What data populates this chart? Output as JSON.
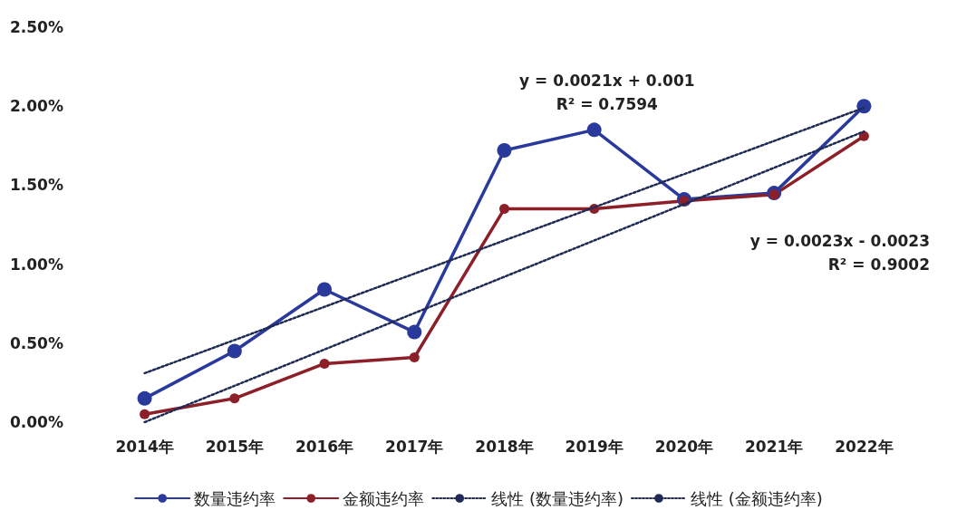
{
  "chart_data": {
    "type": "line",
    "categories": [
      "2014年",
      "2015年",
      "2016年",
      "2017年",
      "2018年",
      "2019年",
      "2020年",
      "2021年",
      "2022年"
    ],
    "series": [
      {
        "name": "数量违约率",
        "color": "#2a3a9c",
        "marker": "circle",
        "line_style": "solid",
        "values": [
          0.15,
          0.45,
          0.84,
          0.57,
          1.72,
          1.85,
          1.41,
          1.45,
          2.0
        ]
      },
      {
        "name": "金额违约率",
        "color": "#8c1f28",
        "marker": "circle",
        "line_style": "solid",
        "values": [
          0.05,
          0.15,
          0.37,
          0.41,
          1.35,
          1.35,
          1.4,
          1.44,
          1.81
        ]
      },
      {
        "name": "线性 (数量违约率)",
        "color": "#1f2a55",
        "marker": "none",
        "line_style": "dotted",
        "values": [
          0.31,
          0.52,
          0.73,
          0.94,
          1.15,
          1.36,
          1.57,
          1.78,
          1.99
        ]
      },
      {
        "name": "线性 (金额违约率)",
        "color": "#1f2a55",
        "marker": "none",
        "line_style": "dotted",
        "values": [
          0.0,
          0.23,
          0.46,
          0.69,
          0.92,
          1.15,
          1.38,
          1.61,
          1.84
        ]
      }
    ],
    "ylim": [
      0,
      2.5
    ],
    "yticks": [
      {
        "value": 0,
        "label": "0.00%"
      },
      {
        "value": 0.5,
        "label": "0.50%"
      },
      {
        "value": 1,
        "label": "1.00%"
      },
      {
        "value": 1.5,
        "label": "1.50%"
      },
      {
        "value": 2,
        "label": "2.00%"
      },
      {
        "value": 2.5,
        "label": "2.50%"
      }
    ],
    "grid": false,
    "legend": "bottom",
    "annotations": [
      "y = 0.0021x + 0.001\nR² = 0.7594",
      "y = 0.0023x - 0.0023\nR² = 0.9002"
    ]
  }
}
